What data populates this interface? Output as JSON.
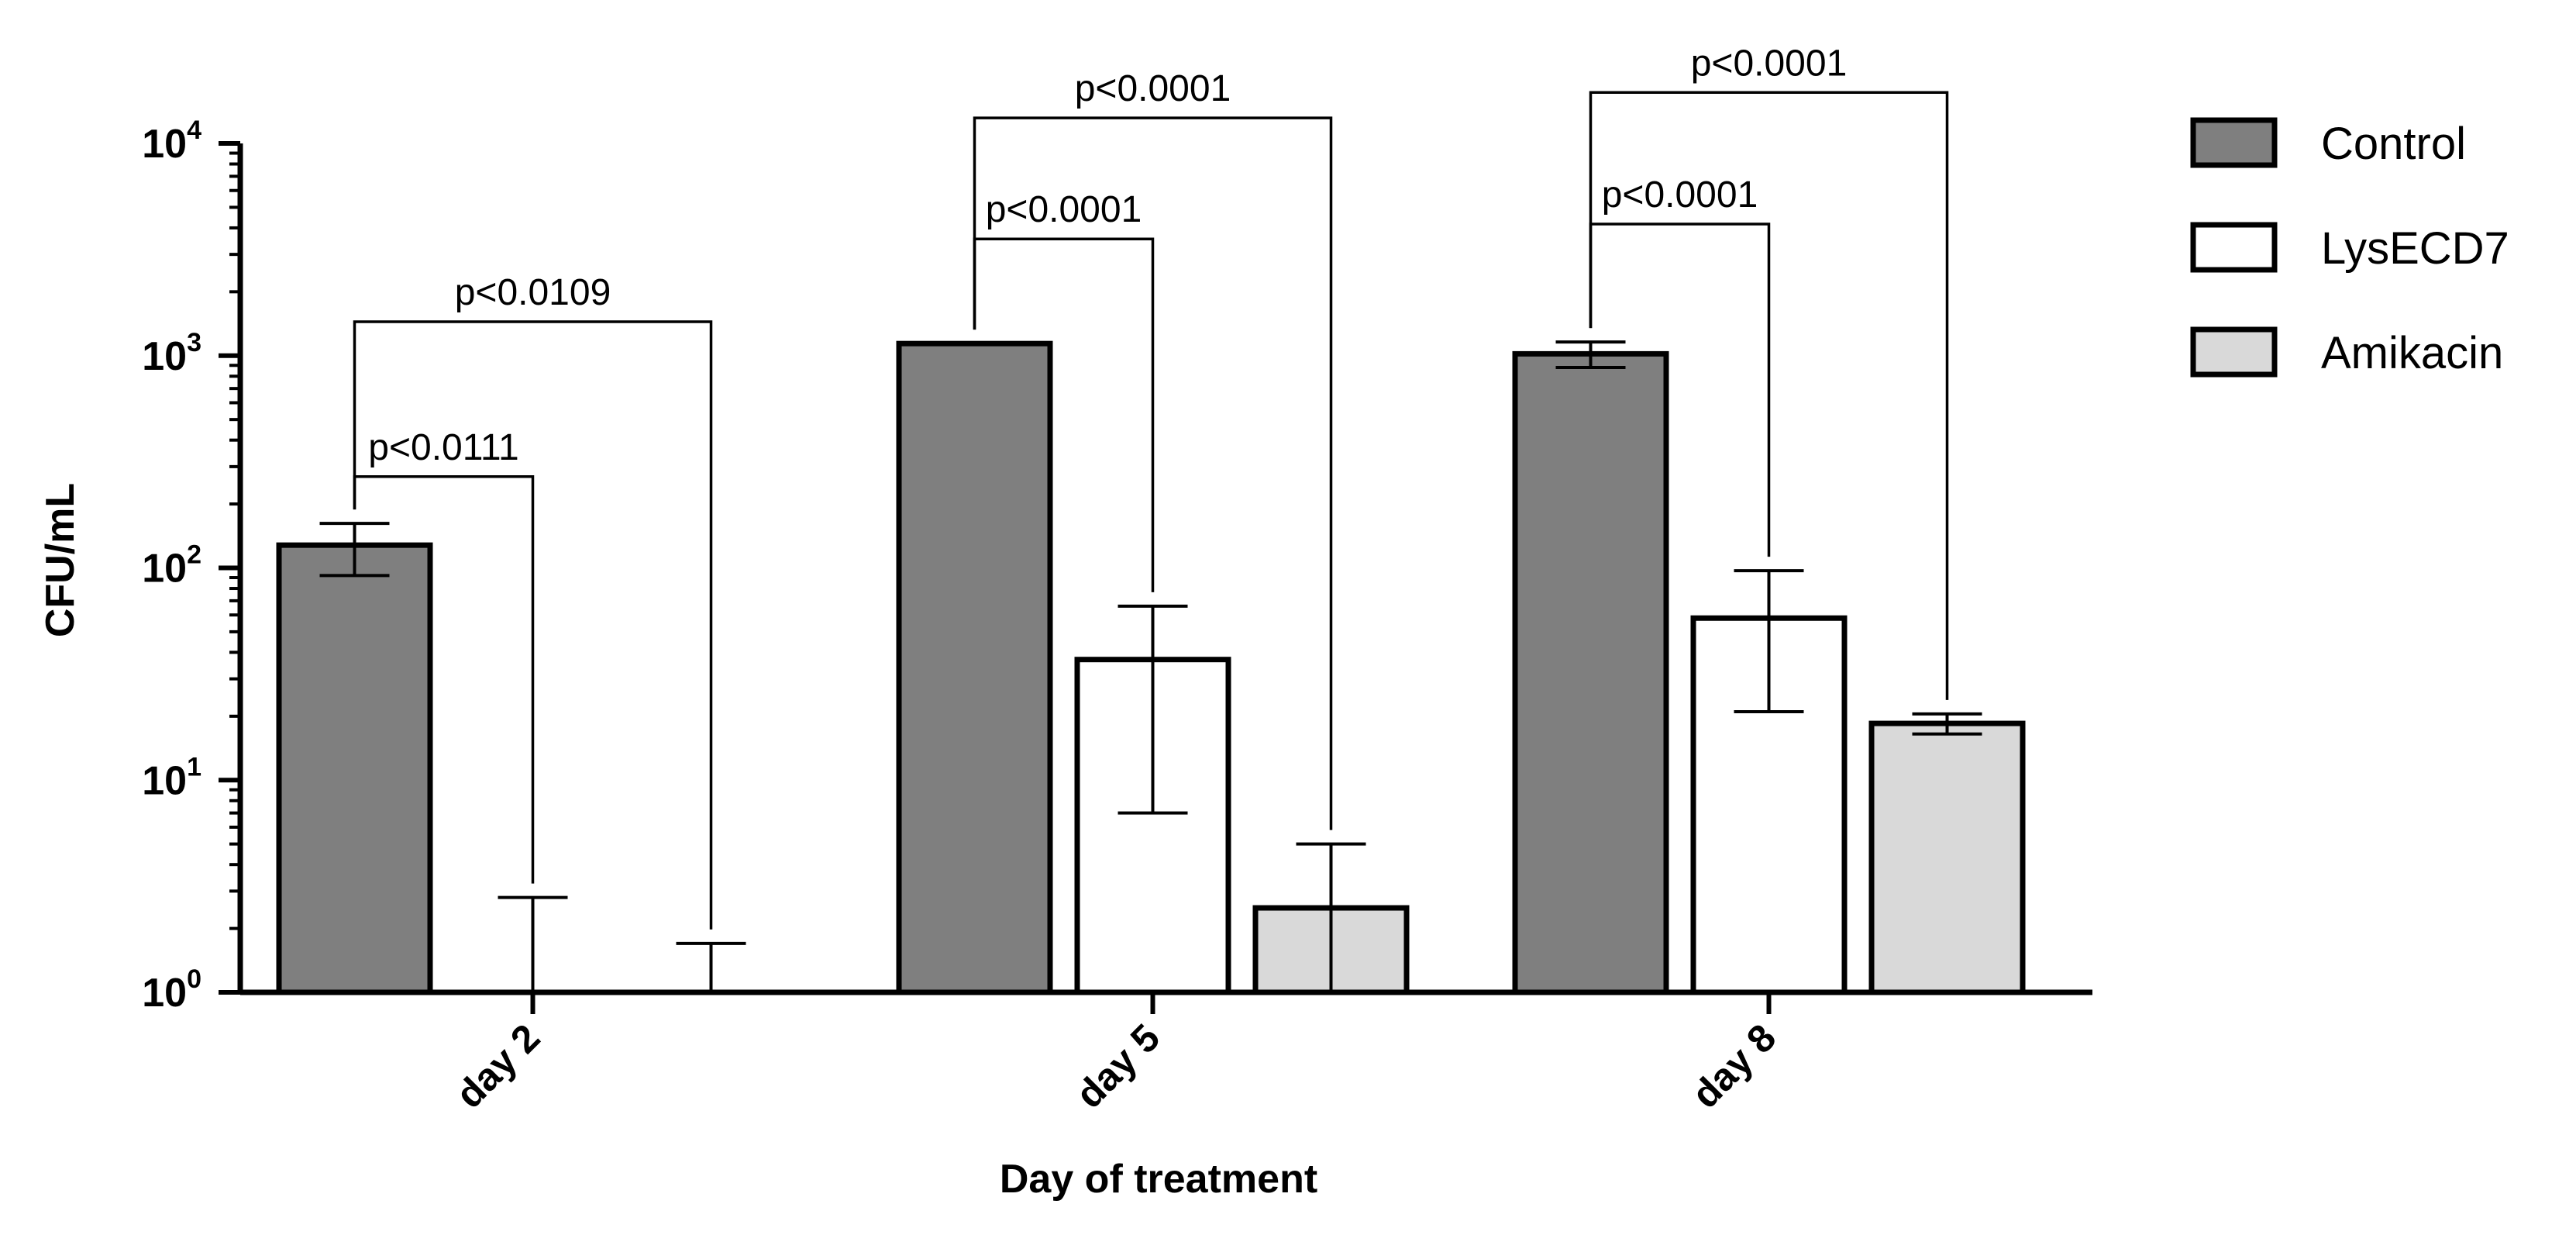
{
  "chart_data": {
    "type": "bar",
    "y_scale": "log10",
    "ylim": [
      1,
      10000
    ],
    "y_ticks": [
      {
        "base": "10",
        "exp": "0"
      },
      {
        "base": "10",
        "exp": "1"
      },
      {
        "base": "10",
        "exp": "2"
      },
      {
        "base": "10",
        "exp": "3"
      },
      {
        "base": "10",
        "exp": "4"
      }
    ],
    "ylabel": "CFU/mL",
    "xlabel": "Day of treatment",
    "categories": [
      "day 2",
      "day 5",
      "day 8"
    ],
    "series": [
      {
        "name": "Control",
        "color": "#7f7f7f",
        "values": [
          128,
          1140,
          1020
        ],
        "error_low": [
          92,
          1140,
          880
        ],
        "error_high": [
          162,
          1140,
          1160
        ]
      },
      {
        "name": "LysECD7",
        "color": "#ffffff",
        "values": [
          1,
          37,
          58
        ],
        "error_low": [
          1,
          7,
          21
        ],
        "error_high": [
          2.8,
          66,
          97
        ]
      },
      {
        "name": "Amikacin",
        "color": "#d9d9d9",
        "values": [
          1,
          2.5,
          18.5
        ],
        "error_low": [
          1,
          1,
          16.5
        ],
        "error_high": [
          1.7,
          5,
          20.5
        ]
      }
    ],
    "legend_position": "top-right",
    "grid": false,
    "annotations": [
      {
        "text": "p<0.0111",
        "group": 0,
        "from": 0,
        "to": 1,
        "level": 2.43
      },
      {
        "text": "p<0.0109",
        "group": 0,
        "from": 0,
        "to": 2,
        "level": 3.16
      },
      {
        "text": "p<0.0001",
        "group": 1,
        "from": 0,
        "to": 1,
        "level": 3.55
      },
      {
        "text": "p<0.0001",
        "group": 1,
        "from": 0,
        "to": 2,
        "level": 4.12
      },
      {
        "text": "p<0.0001",
        "group": 2,
        "from": 0,
        "to": 1,
        "level": 3.62
      },
      {
        "text": "p<0.0001",
        "group": 2,
        "from": 0,
        "to": 2,
        "level": 4.24
      }
    ]
  }
}
